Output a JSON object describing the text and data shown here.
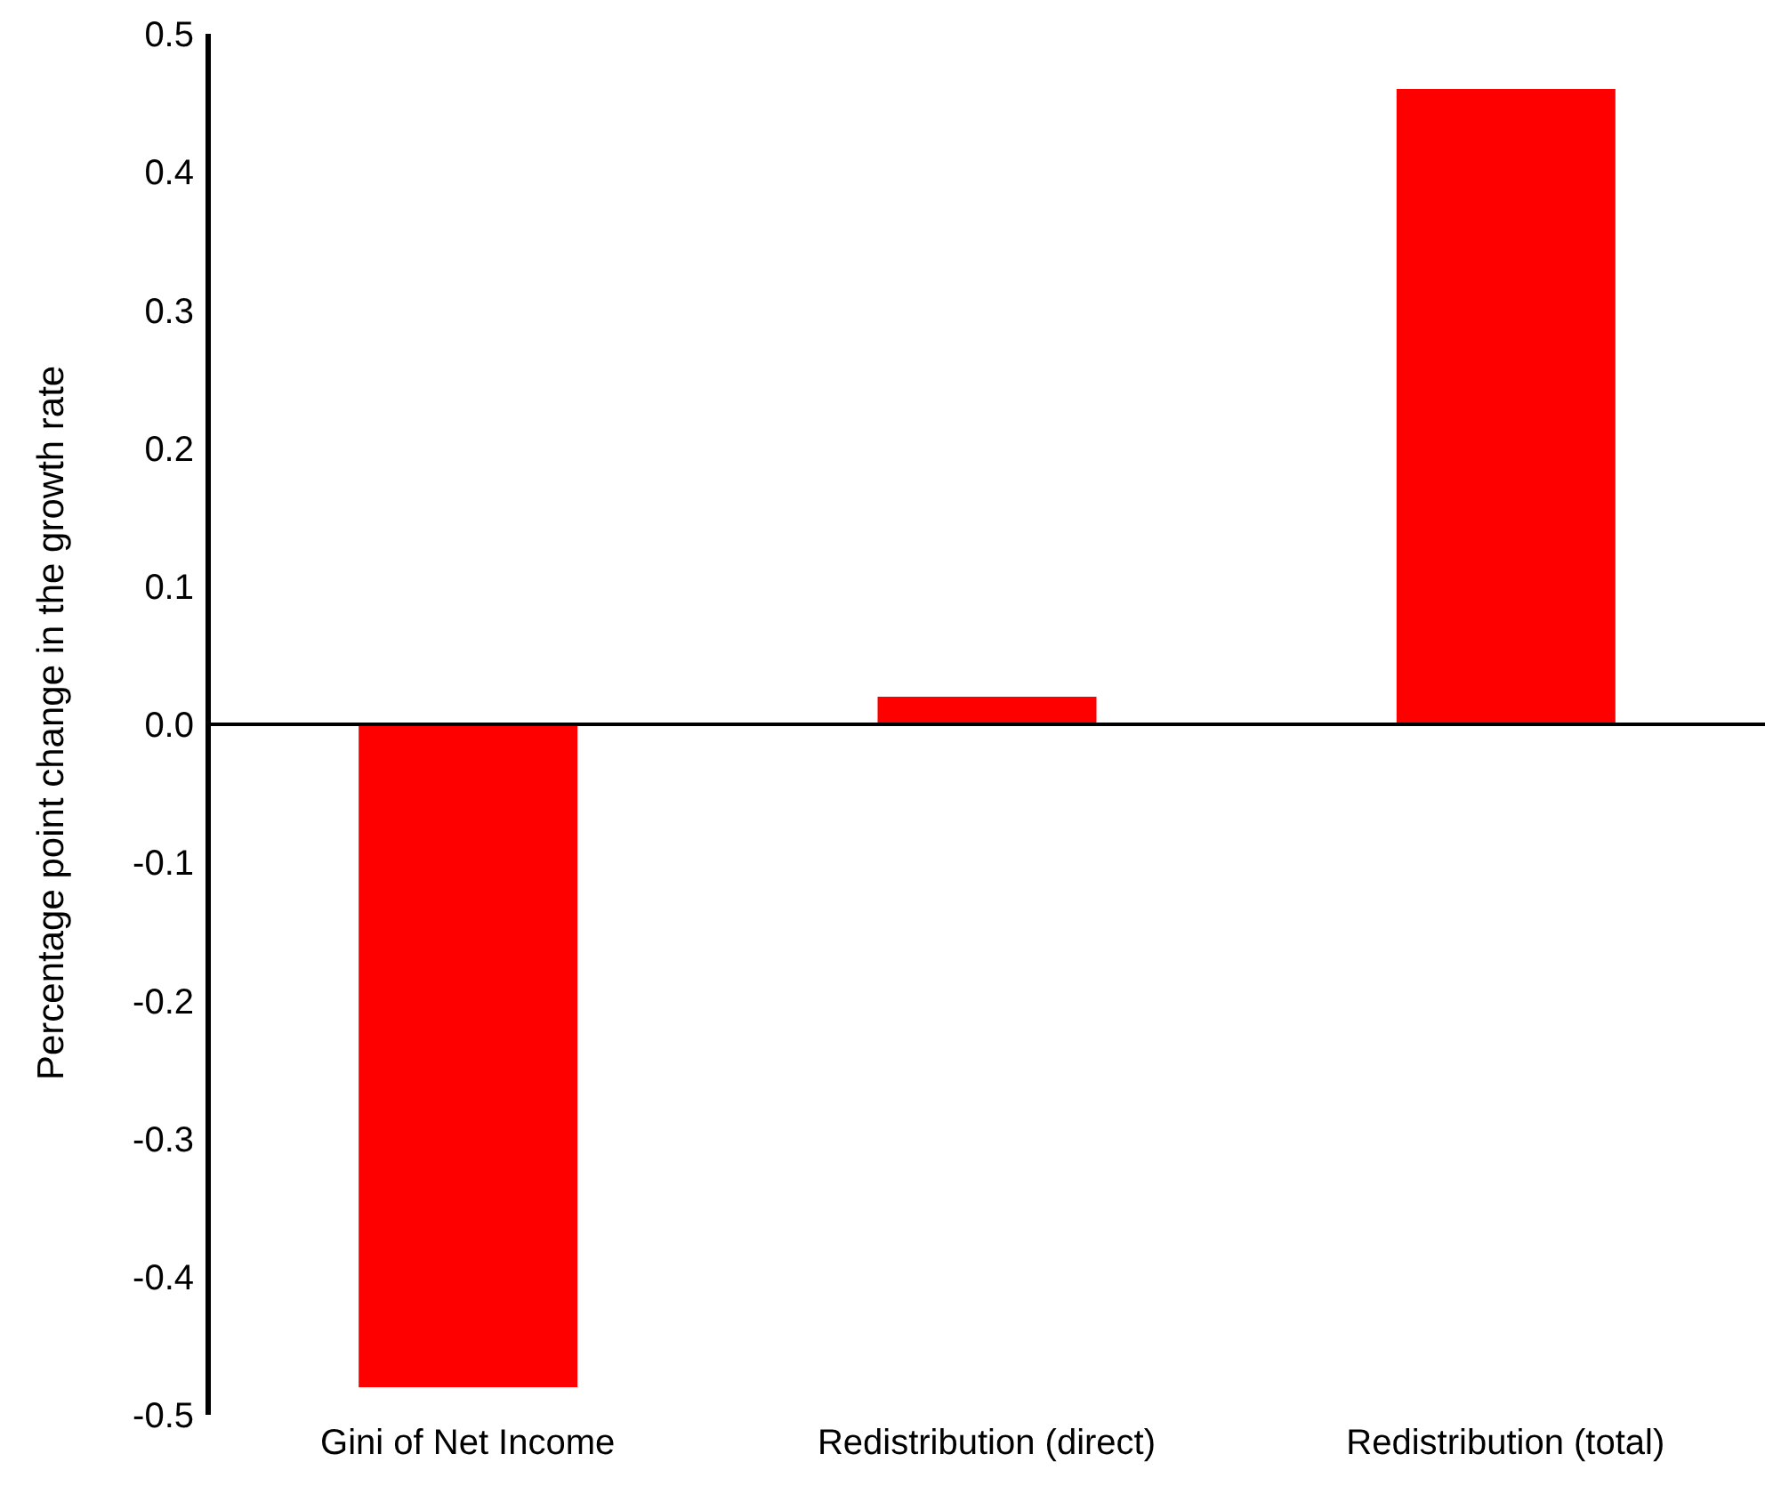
{
  "chart_data": {
    "type": "bar",
    "ylabel": "Percentage point change in the growth rate",
    "categories": [
      "Gini of Net Income",
      "Redistribution (direct)",
      "Redistribution (total)"
    ],
    "values": [
      -0.48,
      0.02,
      0.46
    ],
    "color": "#ff0000",
    "ylim": [
      -0.5,
      0.5
    ],
    "yticks": [
      {
        "value": -0.5,
        "label": "-0.5"
      },
      {
        "value": -0.4,
        "label": "-0.4"
      },
      {
        "value": -0.3,
        "label": "-0.3"
      },
      {
        "value": -0.2,
        "label": "-0.2"
      },
      {
        "value": -0.1,
        "label": "-0.1"
      },
      {
        "value": 0,
        "label": "0.0"
      },
      {
        "value": 0.1,
        "label": "0.1"
      },
      {
        "value": 0.2,
        "label": "0.2"
      },
      {
        "value": 0.3,
        "label": "0.3"
      },
      {
        "value": 0.4,
        "label": "0.4"
      },
      {
        "value": 0.5,
        "label": "0.5"
      }
    ],
    "legend": false
  }
}
